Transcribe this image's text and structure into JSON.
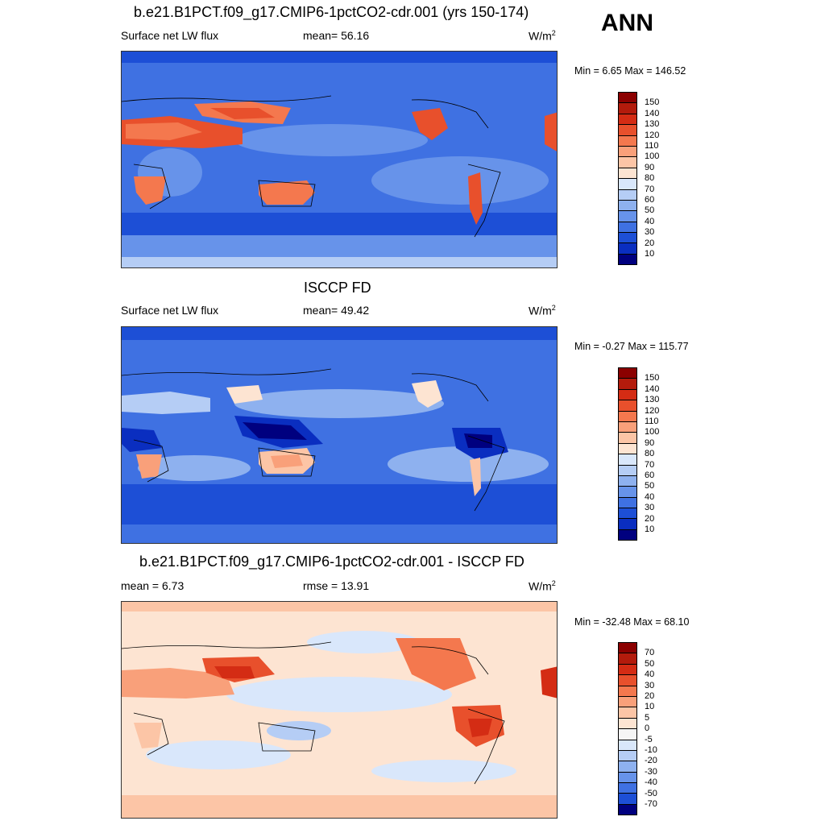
{
  "season": "ANN",
  "panels": [
    {
      "title": "b.e21.B1PCT.f09_g17.CMIP6-1pctCO2-cdr.001 (yrs 150-174)",
      "left": "Surface net LW flux",
      "center": "mean=  56.16",
      "units": "W/m",
      "units_sup": "2",
      "minmax": "Min =   6.65 Max = 146.52"
    },
    {
      "title": "ISCCP FD",
      "left": "Surface net LW flux",
      "center": "mean=  49.42",
      "units": "W/m",
      "units_sup": "2",
      "minmax": "Min =  -0.27 Max = 115.77"
    },
    {
      "title": "b.e21.B1PCT.f09_g17.CMIP6-1pctCO2-cdr.001 - ISCCP FD",
      "left": "mean =   6.73",
      "center": "rmse =  13.91",
      "units": "W/m",
      "units_sup": "2",
      "minmax": "Min = -32.48 Max =  68.10"
    }
  ],
  "colorbars": {
    "abs": {
      "labels": [
        "150",
        "140",
        "130",
        "120",
        "110",
        "100",
        "90",
        "80",
        "70",
        "60",
        "50",
        "40",
        "30",
        "20",
        "10"
      ],
      "colors": [
        "#8b0000",
        "#b31b0c",
        "#d42c14",
        "#e8502c",
        "#f4784e",
        "#f9a07a",
        "#fcc5a6",
        "#fde4d2",
        "#d9e7fb",
        "#b5cdf5",
        "#8eb1ef",
        "#6793ea",
        "#3f71e2",
        "#1d4fd6",
        "#0a2ec0",
        "#00007f"
      ]
    },
    "diff": {
      "labels": [
        "70",
        "50",
        "40",
        "30",
        "20",
        "10",
        "5",
        "0",
        "-5",
        "-10",
        "-20",
        "-30",
        "-40",
        "-50",
        "-70"
      ],
      "colors": [
        "#8b0000",
        "#b31b0c",
        "#d42c14",
        "#e8502c",
        "#f4784e",
        "#f9a07a",
        "#fcc5a6",
        "#fde4d2",
        "#f5f5f5",
        "#d9e7fb",
        "#b5cdf5",
        "#8eb1ef",
        "#6793ea",
        "#3f71e2",
        "#1d4fd6",
        "#00007f"
      ]
    }
  }
}
